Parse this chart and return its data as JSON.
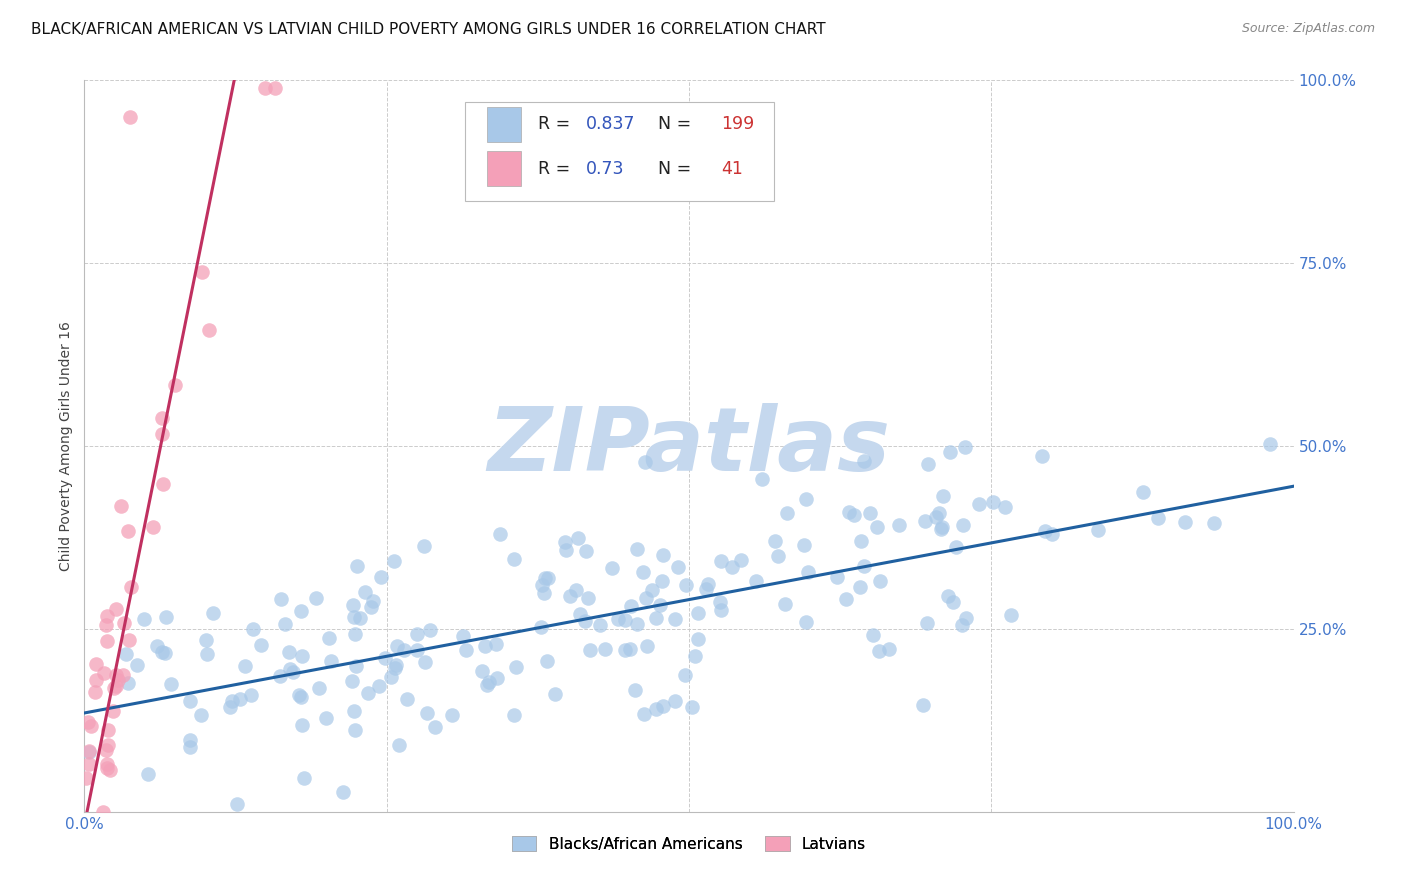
{
  "title": "BLACK/AFRICAN AMERICAN VS LATVIAN CHILD POVERTY AMONG GIRLS UNDER 16 CORRELATION CHART",
  "source": "Source: ZipAtlas.com",
  "ylabel": "Child Poverty Among Girls Under 16",
  "watermark": "ZIPatlas",
  "blue_R": 0.837,
  "blue_N": 199,
  "pink_R": 0.73,
  "pink_N": 41,
  "blue_color": "#a8c8e8",
  "pink_color": "#f4a0b8",
  "blue_line_color": "#2060a0",
  "pink_line_color": "#d0306080",
  "xlim": [
    0.0,
    1.0
  ],
  "ylim": [
    0.0,
    1.0
  ],
  "xticks": [
    0.0,
    0.25,
    0.5,
    0.75,
    1.0
  ],
  "yticks": [
    0.0,
    0.25,
    0.5,
    0.75,
    1.0
  ],
  "background_color": "#ffffff",
  "grid_color": "#cccccc",
  "title_fontsize": 11,
  "axis_label_fontsize": 10,
  "tick_fontsize": 11,
  "legend_R_color": "#3355bb",
  "legend_N_color": "#cc3333",
  "watermark_color": "#c5d8ee"
}
